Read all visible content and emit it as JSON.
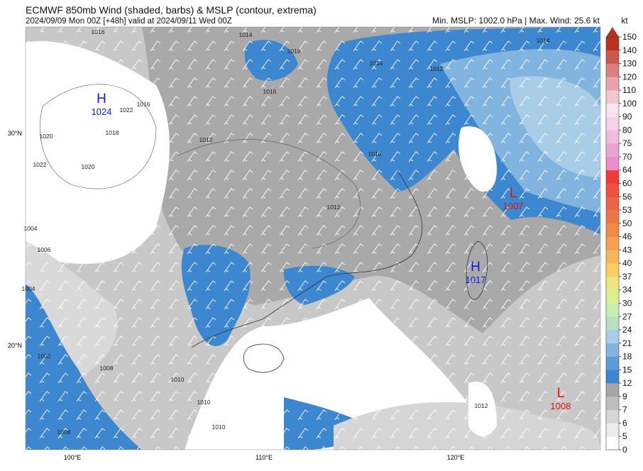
{
  "header": {
    "title": "ECMWF 850mb Wind (shaded, barbs) & MSLP (contour, extrema)",
    "subtitle": "2024/09/09 Mon 00Z [+48h] valid at 2024/09/11 Wed 00Z",
    "stats": "Min. MSLP: 1002.0 hPa | Max. Wind: 25.6 kt"
  },
  "colorbar": {
    "unit": "kt",
    "ticks": [
      0,
      5,
      6,
      7,
      9,
      12,
      15,
      18,
      21,
      24,
      27,
      30,
      34,
      37,
      40,
      43,
      46,
      50,
      53,
      56,
      60,
      64,
      70,
      75,
      80,
      90,
      100,
      110,
      120,
      130,
      140,
      150
    ],
    "colors": [
      "#ffffff",
      "#ebebeb",
      "#d6d6d6",
      "#bdbdbd",
      "#a6a6a6",
      "#3d86d0",
      "#5b9bd8",
      "#82b4e0",
      "#a9cde6",
      "#b8dfc0",
      "#c9ecb0",
      "#dcef90",
      "#ede67a",
      "#f5d060",
      "#f6b65a",
      "#f4a050",
      "#f08a48",
      "#ee7548",
      "#ec6447",
      "#ef5040",
      "#f23a3a",
      "#e98ec8",
      "#e9a4d2",
      "#efbcde",
      "#f4d2e8",
      "#f8e4f1",
      "#f2c6d0",
      "#e6a4ab",
      "#d9817f",
      "#c9584f",
      "#b8321f"
    ]
  },
  "map": {
    "lat_labels": [
      "30°N",
      "20°N"
    ],
    "lon_labels": [
      "100°E",
      "110°E",
      "120°E"
    ],
    "centers": [
      {
        "letter": "H",
        "value": "1024"
      },
      {
        "letter": "L",
        "value": "1007"
      },
      {
        "letter": "H",
        "value": "1017"
      },
      {
        "letter": "L",
        "value": "1008"
      }
    ],
    "contour_labels": [
      "1016",
      "1014",
      "1018",
      "1016",
      "1022",
      "1016",
      "1020",
      "1012",
      "1010",
      "1014",
      "1012",
      "1014",
      "1004",
      "1006",
      "1008",
      "1010",
      "1010",
      "1008",
      "1010",
      "1012",
      "1004",
      "1006",
      "1020",
      "1018",
      "1022",
      "1012"
    ]
  }
}
